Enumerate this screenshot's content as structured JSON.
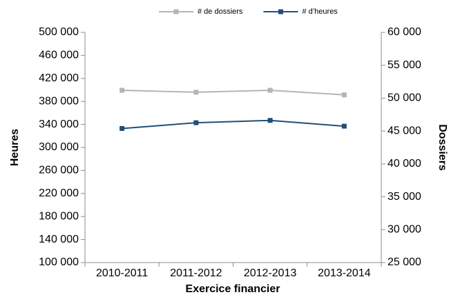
{
  "chart_data": {
    "type": "line",
    "x_label": "Exercice financier",
    "y_label": "Heures",
    "y2_label": "Dossiers",
    "categories": [
      "2010-2011",
      "2011-2012",
      "2012-2013",
      "2013-2014"
    ],
    "series": [
      {
        "name": "# de dossiers",
        "color": "#b4b4b4",
        "axis": "y2",
        "values": [
          51200,
          50900,
          51200,
          50500
        ]
      },
      {
        "name": "# d’heures",
        "color": "#1f4e79",
        "values": [
          333000,
          343000,
          347000,
          337000
        ]
      }
    ],
    "ylim": [
      100000,
      500000
    ],
    "yticks": [
      {
        "value": 100000,
        "label": "100 000"
      },
      {
        "value": 140000,
        "label": "140 000"
      },
      {
        "value": 180000,
        "label": "180 000"
      },
      {
        "value": 220000,
        "label": "220 000"
      },
      {
        "value": 260000,
        "label": "260 000"
      },
      {
        "value": 300000,
        "label": "300 000"
      },
      {
        "value": 340000,
        "label": "340 000"
      },
      {
        "value": 380000,
        "label": "380 000"
      },
      {
        "value": 420000,
        "label": "420 000"
      },
      {
        "value": 460000,
        "label": "460 000"
      },
      {
        "value": 500000,
        "label": "500 000"
      }
    ],
    "y2lim": [
      25000,
      60000
    ],
    "y2ticks": [
      {
        "value": 25000,
        "label": "25 000"
      },
      {
        "value": 30000,
        "label": "30 000"
      },
      {
        "value": 35000,
        "label": "35 000"
      },
      {
        "value": 40000,
        "label": "40 000"
      },
      {
        "value": 45000,
        "label": "45 000"
      },
      {
        "value": 50000,
        "label": "50 000"
      },
      {
        "value": 55000,
        "label": "55 000"
      },
      {
        "value": 60000,
        "label": "60 000"
      }
    ],
    "legend": "top",
    "grid": false
  }
}
